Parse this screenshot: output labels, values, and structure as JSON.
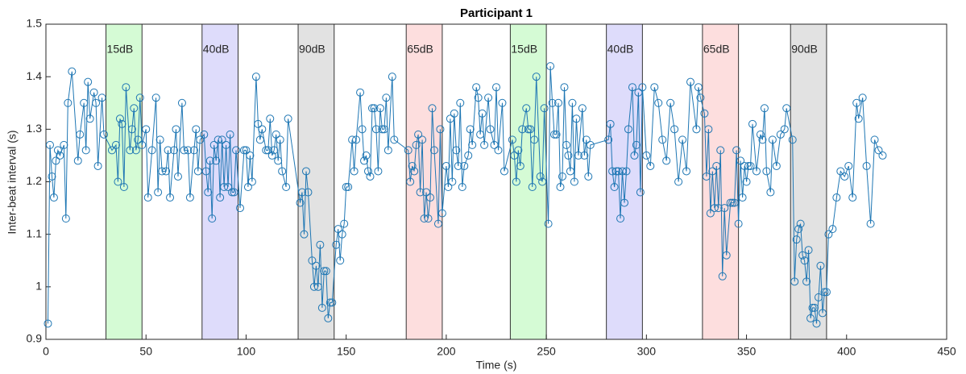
{
  "chart_data": {
    "type": "line",
    "title": "Participant 1",
    "xlabel": "Time (s)",
    "ylabel": "Inter-beat interval (s)",
    "xlim": [
      0,
      450
    ],
    "xticks": [
      0,
      50,
      100,
      150,
      200,
      250,
      300,
      350,
      400,
      450
    ],
    "ylim": [
      0.9,
      1.5
    ],
    "yticks": [
      0.9,
      1,
      1.1,
      1.2,
      1.3,
      1.4,
      1.5
    ],
    "grid": false,
    "marker": "circle",
    "regions": [
      {
        "label": "15dB",
        "start": 30,
        "end": 48,
        "color": "#d5fbd5"
      },
      {
        "label": "40dB",
        "start": 78,
        "end": 96,
        "color": "#dedcfb"
      },
      {
        "label": "90dB",
        "start": 126,
        "end": 144,
        "color": "#e2e2e2"
      },
      {
        "label": "65dB",
        "start": 180,
        "end": 198,
        "color": "#fddede"
      },
      {
        "label": "15dB",
        "start": 232,
        "end": 250,
        "color": "#d5fbd5"
      },
      {
        "label": "40dB",
        "start": 280,
        "end": 298,
        "color": "#dedcfb"
      },
      {
        "label": "65dB",
        "start": 328,
        "end": 346,
        "color": "#fddede"
      },
      {
        "label": "90dB",
        "start": 372,
        "end": 390,
        "color": "#e2e2e2"
      }
    ],
    "x": [
      1,
      2,
      3,
      4,
      5,
      6,
      7,
      9,
      10,
      11,
      13,
      16,
      17,
      19,
      20,
      21,
      22,
      24,
      25,
      26,
      28,
      29,
      33,
      35,
      36,
      37,
      38,
      39,
      40,
      42,
      43,
      44,
      45,
      46,
      47,
      48,
      50,
      51,
      53,
      55,
      56,
      57,
      58,
      60,
      61,
      62,
      64,
      65,
      66,
      68,
      69,
      71,
      72,
      74,
      75,
      76,
      77,
      79,
      80,
      81,
      82,
      83,
      84,
      85,
      86,
      87,
      88,
      89,
      90,
      91,
      92,
      93,
      94,
      95,
      97,
      99,
      100,
      101,
      102,
      103,
      105,
      106,
      107,
      108,
      110,
      111,
      112,
      113,
      114,
      115,
      116,
      117,
      118,
      120,
      121,
      127,
      128,
      129,
      130,
      131,
      133,
      134,
      135,
      136,
      137,
      138,
      139,
      140,
      141,
      142,
      143,
      145,
      146,
      147,
      148,
      149,
      150,
      151,
      153,
      154,
      155,
      157,
      158,
      159,
      160,
      161,
      162,
      163,
      164,
      165,
      166,
      167,
      168,
      169,
      170,
      171,
      173,
      174,
      181,
      182,
      183,
      184,
      185,
      186,
      187,
      188,
      189,
      190,
      191,
      192,
      193,
      194,
      196,
      197,
      198,
      200,
      201,
      202,
      203,
      204,
      205,
      206,
      207,
      208,
      209,
      211,
      212,
      213,
      215,
      216,
      217,
      218,
      219,
      221,
      222,
      224,
      225,
      226,
      228,
      229,
      233,
      234,
      235,
      236,
      237,
      238,
      240,
      241,
      242,
      243,
      244,
      245,
      247,
      248,
      249,
      251,
      252,
      253,
      254,
      255,
      256,
      257,
      258,
      259,
      260,
      261,
      262,
      263,
      264,
      265,
      266,
      268,
      269,
      270,
      271,
      272,
      281,
      282,
      283,
      284,
      285,
      286,
      287,
      288,
      289,
      290,
      291,
      293,
      294,
      295,
      296,
      297,
      298,
      300,
      302,
      304,
      306,
      308,
      310,
      312,
      314,
      316,
      318,
      320,
      322,
      325,
      326,
      327,
      329,
      330,
      331,
      332,
      333,
      334,
      335,
      336,
      337,
      338,
      339,
      340,
      342,
      343,
      344,
      345,
      346,
      347,
      348,
      349,
      350,
      351,
      352,
      353,
      355,
      357,
      358,
      359,
      360,
      362,
      363,
      365,
      367,
      369,
      370,
      373,
      374,
      375,
      376,
      377,
      378,
      379,
      380,
      381,
      382,
      383,
      384,
      385,
      386,
      387,
      388,
      389,
      390,
      391,
      393,
      395,
      397,
      399,
      401,
      403,
      405,
      406,
      408,
      410,
      412,
      414,
      416,
      418
    ],
    "color": "#1f77b4",
    "values": [
      0.93,
      1.27,
      1.21,
      1.17,
      1.24,
      1.26,
      1.25,
      1.27,
      1.13,
      1.35,
      1.41,
      1.24,
      1.29,
      1.35,
      1.26,
      1.39,
      1.32,
      1.37,
      1.35,
      1.23,
      1.36,
      1.29,
      1.26,
      1.27,
      1.2,
      1.32,
      1.31,
      1.19,
      1.38,
      1.26,
      1.3,
      1.34,
      1.26,
      1.28,
      1.36,
      1.27,
      1.3,
      1.17,
      1.26,
      1.36,
      1.18,
      1.28,
      1.22,
      1.22,
      1.26,
      1.17,
      1.26,
      1.3,
      1.21,
      1.35,
      1.26,
      1.26,
      1.17,
      1.26,
      1.3,
      1.22,
      1.28,
      1.29,
      1.22,
      1.18,
      1.24,
      1.13,
      1.27,
      1.24,
      1.28,
      1.17,
      1.28,
      1.19,
      1.27,
      1.19,
      1.29,
      1.18,
      1.18,
      1.26,
      1.15,
      1.26,
      1.26,
      1.19,
      1.25,
      1.2,
      1.4,
      1.31,
      1.28,
      1.3,
      1.26,
      1.26,
      1.32,
      1.25,
      1.26,
      1.29,
      1.24,
      1.28,
      1.22,
      1.19,
      1.32,
      1.16,
      1.18,
      1.1,
      1.22,
      1.18,
      1.05,
      1.0,
      1.04,
      1.0,
      1.08,
      0.96,
      1.03,
      1.03,
      0.94,
      0.97,
      0.97,
      1.08,
      1.11,
      1.05,
      1.1,
      1.12,
      1.19,
      1.19,
      1.28,
      1.22,
      1.28,
      1.37,
      1.3,
      1.24,
      1.25,
      1.22,
      1.21,
      1.34,
      1.34,
      1.3,
      1.22,
      1.34,
      1.3,
      1.3,
      1.36,
      1.26,
      1.4,
      1.28,
      1.26,
      1.2,
      1.23,
      1.22,
      1.27,
      1.29,
      1.18,
      1.28,
      1.13,
      1.18,
      1.13,
      1.17,
      1.34,
      1.26,
      1.12,
      1.3,
      1.14,
      1.23,
      1.19,
      1.32,
      1.2,
      1.33,
      1.26,
      1.23,
      1.35,
      1.19,
      1.23,
      1.25,
      1.3,
      1.27,
      1.38,
      1.36,
      1.29,
      1.33,
      1.27,
      1.36,
      1.3,
      1.27,
      1.38,
      1.26,
      1.35,
      1.22,
      1.28,
      1.25,
      1.2,
      1.26,
      1.23,
      1.3,
      1.34,
      1.3,
      1.3,
      1.19,
      1.28,
      1.4,
      1.21,
      1.2,
      1.34,
      1.12,
      1.42,
      1.35,
      1.29,
      1.29,
      1.35,
      1.19,
      1.21,
      1.38,
      1.27,
      1.25,
      1.22,
      1.35,
      1.2,
      1.32,
      1.25,
      1.34,
      1.25,
      1.28,
      1.21,
      1.27,
      1.28,
      1.31,
      1.22,
      1.19,
      1.22,
      1.22,
      1.13,
      1.22,
      1.16,
      1.22,
      1.3,
      1.38,
      1.25,
      1.27,
      1.37,
      1.18,
      1.38,
      1.25,
      1.23,
      1.38,
      1.35,
      1.28,
      1.24,
      1.35,
      1.3,
      1.2,
      1.28,
      1.22,
      1.39,
      1.3,
      1.38,
      1.36,
      1.33,
      1.21,
      1.3,
      1.14,
      1.22,
      1.15,
      1.23,
      1.15,
      1.26,
      1.02,
      1.15,
      1.06,
      1.16,
      1.16,
      1.16,
      1.26,
      1.12,
      1.24,
      1.17,
      1.23,
      1.2,
      1.23,
      1.23,
      1.31,
      1.22,
      1.29,
      1.28,
      1.34,
      1.22,
      1.18,
      1.28,
      1.23,
      1.29,
      1.3,
      1.34,
      1.28,
      1.01,
      1.09,
      1.11,
      1.12,
      1.06,
      1.05,
      1.01,
      1.07,
      0.94,
      0.96,
      0.96,
      0.93,
      0.98,
      1.04,
      0.95,
      0.99,
      0.99,
      1.1,
      1.11,
      1.17,
      1.22,
      1.21,
      1.23,
      1.17,
      1.35,
      1.32,
      1.36,
      1.23,
      1.12,
      1.28,
      1.26,
      1.25
    ]
  }
}
